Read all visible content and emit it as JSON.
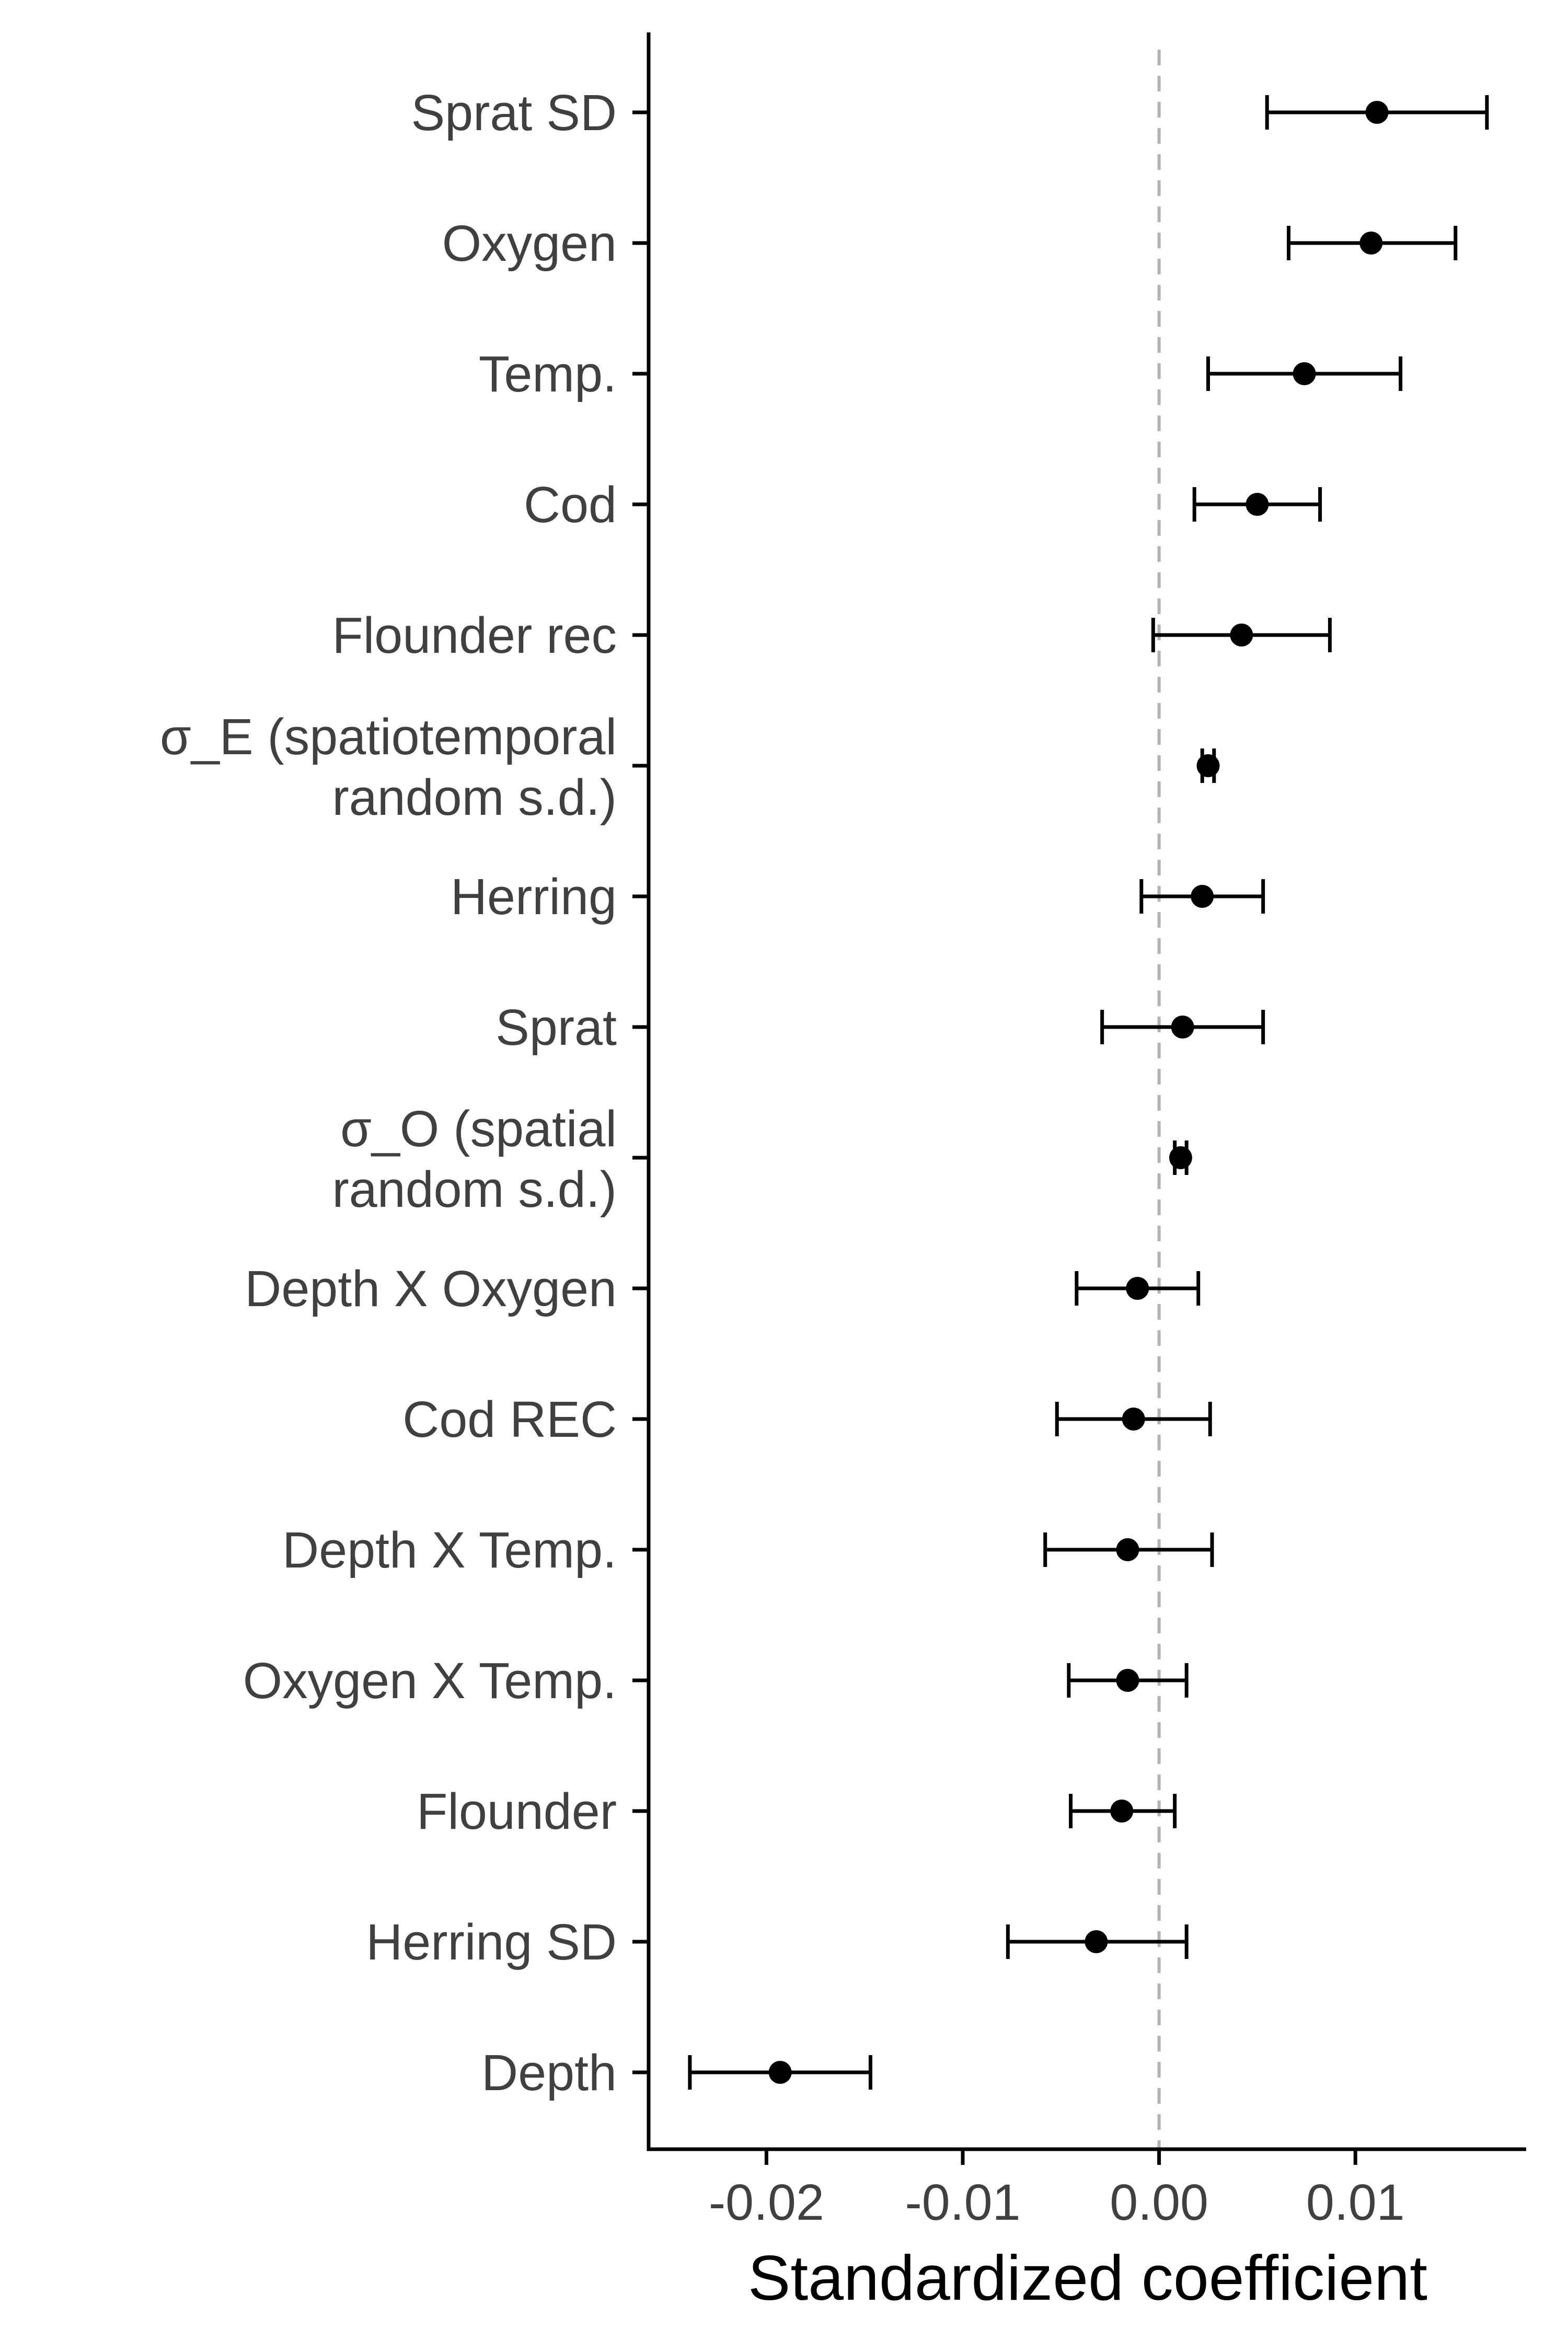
{
  "chart_data": {
    "type": "dot-errorbar",
    "title": "",
    "xlabel": "Standardized coefficient",
    "ylabel": "",
    "xlim": [
      -0.026,
      0.0187
    ],
    "x_ticks": [
      {
        "value": -0.02,
        "label": "-0.02"
      },
      {
        "value": -0.01,
        "label": "-0.01"
      },
      {
        "value": 0.0,
        "label": "0.00"
      },
      {
        "value": 0.01,
        "label": "0.01"
      }
    ],
    "reference_line": {
      "x": 0,
      "style": "dashed",
      "color": "#b3b3b3"
    },
    "grid": false,
    "point_color": "#000000",
    "rows": [
      {
        "lines": [
          "Sprat SD"
        ],
        "estimate": 0.0111,
        "lower": 0.0055,
        "upper": 0.0167
      },
      {
        "lines": [
          "Oxygen"
        ],
        "estimate": 0.0108,
        "lower": 0.0066,
        "upper": 0.0151
      },
      {
        "lines": [
          "Temp."
        ],
        "estimate": 0.0074,
        "lower": 0.0025,
        "upper": 0.0123
      },
      {
        "lines": [
          "Cod"
        ],
        "estimate": 0.005,
        "lower": 0.0018,
        "upper": 0.0082
      },
      {
        "lines": [
          "Flounder rec"
        ],
        "estimate": 0.0042,
        "lower": -0.0003,
        "upper": 0.0087
      },
      {
        "lines": [
          "σ_E (spatiotemporal",
          "random s.d.)"
        ],
        "estimate": 0.0025,
        "lower": 0.0022,
        "upper": 0.0028
      },
      {
        "lines": [
          "Herring"
        ],
        "estimate": 0.0022,
        "lower": -0.0009,
        "upper": 0.0053
      },
      {
        "lines": [
          "Sprat"
        ],
        "estimate": 0.0012,
        "lower": -0.0029,
        "upper": 0.0053
      },
      {
        "lines": [
          "σ_O (spatial",
          "random s.d.)"
        ],
        "estimate": 0.0011,
        "lower": 0.0008,
        "upper": 0.0014
      },
      {
        "lines": [
          "Depth X Oxygen"
        ],
        "estimate": -0.0011,
        "lower": -0.0042,
        "upper": 0.002
      },
      {
        "lines": [
          "Cod REC"
        ],
        "estimate": -0.0013,
        "lower": -0.0052,
        "upper": 0.0026
      },
      {
        "lines": [
          "Depth X Temp."
        ],
        "estimate": -0.0016,
        "lower": -0.0058,
        "upper": 0.0027
      },
      {
        "lines": [
          "Oxygen X Temp."
        ],
        "estimate": -0.0016,
        "lower": -0.0046,
        "upper": 0.0014
      },
      {
        "lines": [
          "Flounder"
        ],
        "estimate": -0.0019,
        "lower": -0.0045,
        "upper": 0.0008
      },
      {
        "lines": [
          "Herring SD"
        ],
        "estimate": -0.0032,
        "lower": -0.0077,
        "upper": 0.0014
      },
      {
        "lines": [
          "Depth"
        ],
        "estimate": -0.0193,
        "lower": -0.0239,
        "upper": -0.0147
      }
    ]
  }
}
